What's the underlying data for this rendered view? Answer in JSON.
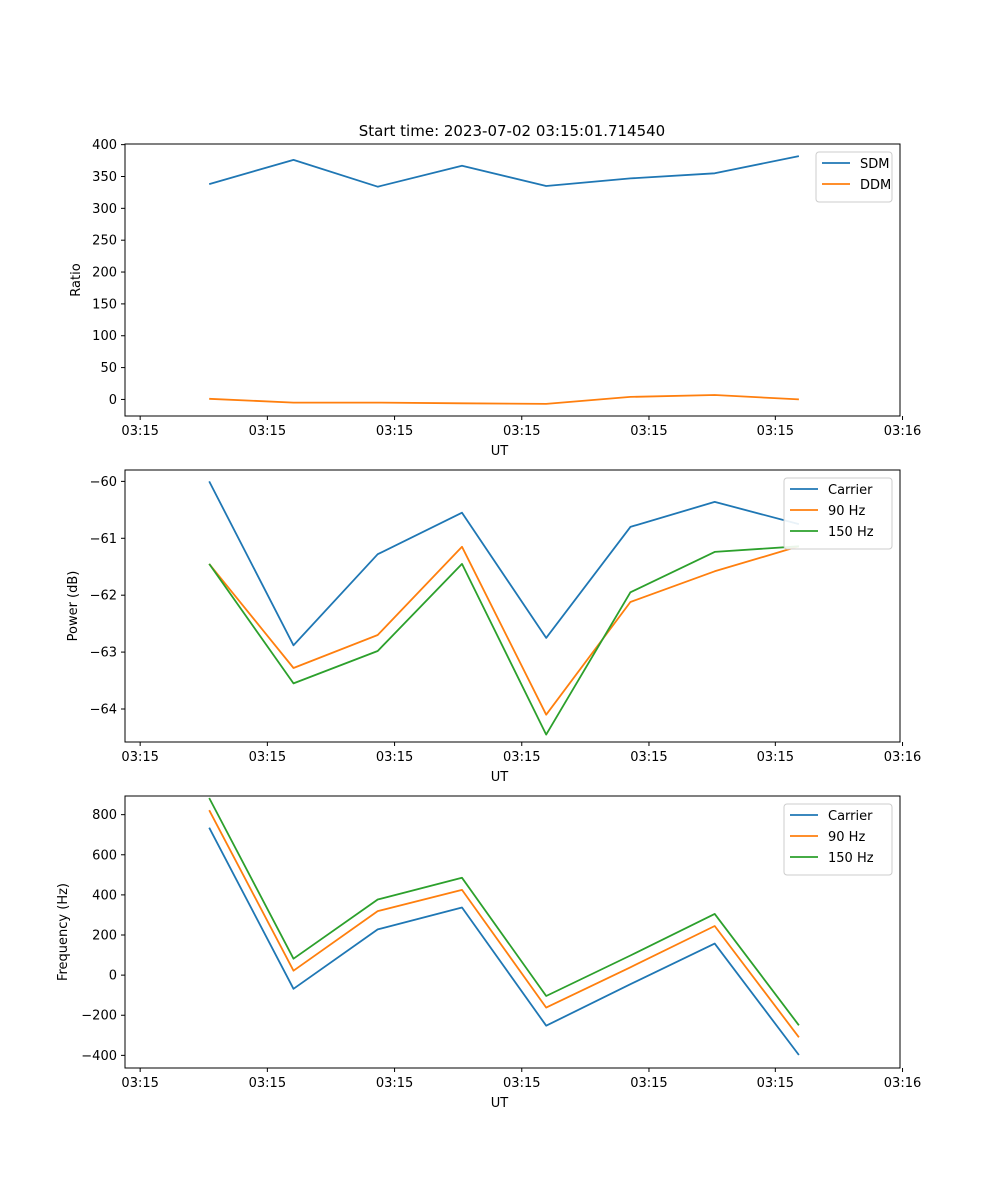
{
  "figure": {
    "title": "Start time: 2023-07-02 03:15:01.714540"
  },
  "chart_data": [
    {
      "type": "line",
      "title": "Start time: 2023-07-02 03:15:01.714540",
      "xlabel": "UT",
      "ylabel": "Ratio",
      "x": [
        1,
        2,
        3,
        4,
        5,
        6,
        7,
        8
      ],
      "xlim": [
        0.0,
        9.2
      ],
      "xticks": [
        0.18,
        1.69,
        3.2,
        4.71,
        6.22,
        7.72,
        9.23
      ],
      "xtick_labels": [
        "03:15",
        "03:15",
        "03:15",
        "03:15",
        "03:15",
        "03:15",
        "03:16"
      ],
      "ylim": [
        -26,
        401
      ],
      "yticks": [
        0,
        50,
        100,
        150,
        200,
        250,
        300,
        350,
        400
      ],
      "ytick_labels": [
        "0",
        "50",
        "100",
        "150",
        "200",
        "250",
        "300",
        "350",
        "400"
      ],
      "legend": "top-right",
      "series": [
        {
          "name": "SDM",
          "color": "#1f77b4",
          "values": [
            338,
            376,
            334,
            367,
            335,
            347,
            355,
            382
          ]
        },
        {
          "name": "DDM",
          "color": "#ff7f0e",
          "values": [
            1,
            -5,
            -5,
            -6,
            -7,
            4,
            7,
            0
          ]
        }
      ]
    },
    {
      "type": "line",
      "title": "",
      "xlabel": "UT",
      "ylabel": "Power (dB)",
      "x": [
        1,
        2,
        3,
        4,
        5,
        6,
        7,
        8
      ],
      "xlim": [
        0.0,
        9.2
      ],
      "xticks": [
        0.18,
        1.69,
        3.2,
        4.71,
        6.22,
        7.72,
        9.23
      ],
      "xtick_labels": [
        "03:15",
        "03:15",
        "03:15",
        "03:15",
        "03:15",
        "03:15",
        "03:16"
      ],
      "ylim": [
        -64.58,
        -59.8
      ],
      "yticks": [
        -64,
        -63,
        -62,
        -61,
        -60
      ],
      "ytick_labels": [
        "−64",
        "−63",
        "−62",
        "−61",
        "−60"
      ],
      "legend": "top-right",
      "series": [
        {
          "name": "Carrier",
          "color": "#1f77b4",
          "values": [
            -60.0,
            -62.88,
            -61.28,
            -60.55,
            -62.75,
            -60.8,
            -60.36,
            -60.75
          ]
        },
        {
          "name": "90 Hz",
          "color": "#ff7f0e",
          "values": [
            -61.45,
            -63.28,
            -62.7,
            -61.15,
            -64.1,
            -62.12,
            -61.58,
            -61.14
          ]
        },
        {
          "name": "150 Hz",
          "color": "#2ca02c",
          "values": [
            -61.45,
            -63.55,
            -62.98,
            -61.45,
            -64.45,
            -61.95,
            -61.24,
            -61.14
          ]
        }
      ]
    },
    {
      "type": "line",
      "title": "",
      "xlabel": "UT",
      "ylabel": "Frequency (Hz)",
      "x": [
        1,
        2,
        3,
        4,
        5,
        6,
        7,
        8
      ],
      "xlim": [
        0.0,
        9.2
      ],
      "xticks": [
        0.18,
        1.69,
        3.2,
        4.71,
        6.22,
        7.72,
        9.23
      ],
      "xtick_labels": [
        "03:15",
        "03:15",
        "03:15",
        "03:15",
        "03:15",
        "03:15",
        "03:16"
      ],
      "ylim": [
        -463,
        893
      ],
      "yticks": [
        -400,
        -200,
        0,
        200,
        400,
        600,
        800
      ],
      "ytick_labels": [
        "−400",
        "−200",
        "0",
        "200",
        "400",
        "600",
        "800"
      ],
      "legend": "top-right",
      "series": [
        {
          "name": "Carrier",
          "color": "#1f77b4",
          "values": [
            735,
            -68,
            228,
            337,
            -252,
            -45,
            157,
            -398
          ]
        },
        {
          "name": "90 Hz",
          "color": "#ff7f0e",
          "values": [
            822,
            22,
            319,
            425,
            -162,
            39,
            245,
            -310
          ]
        },
        {
          "name": "150 Hz",
          "color": "#2ca02c",
          "values": [
            883,
            82,
            377,
            485,
            -104,
            98,
            305,
            -250
          ]
        }
      ]
    }
  ]
}
